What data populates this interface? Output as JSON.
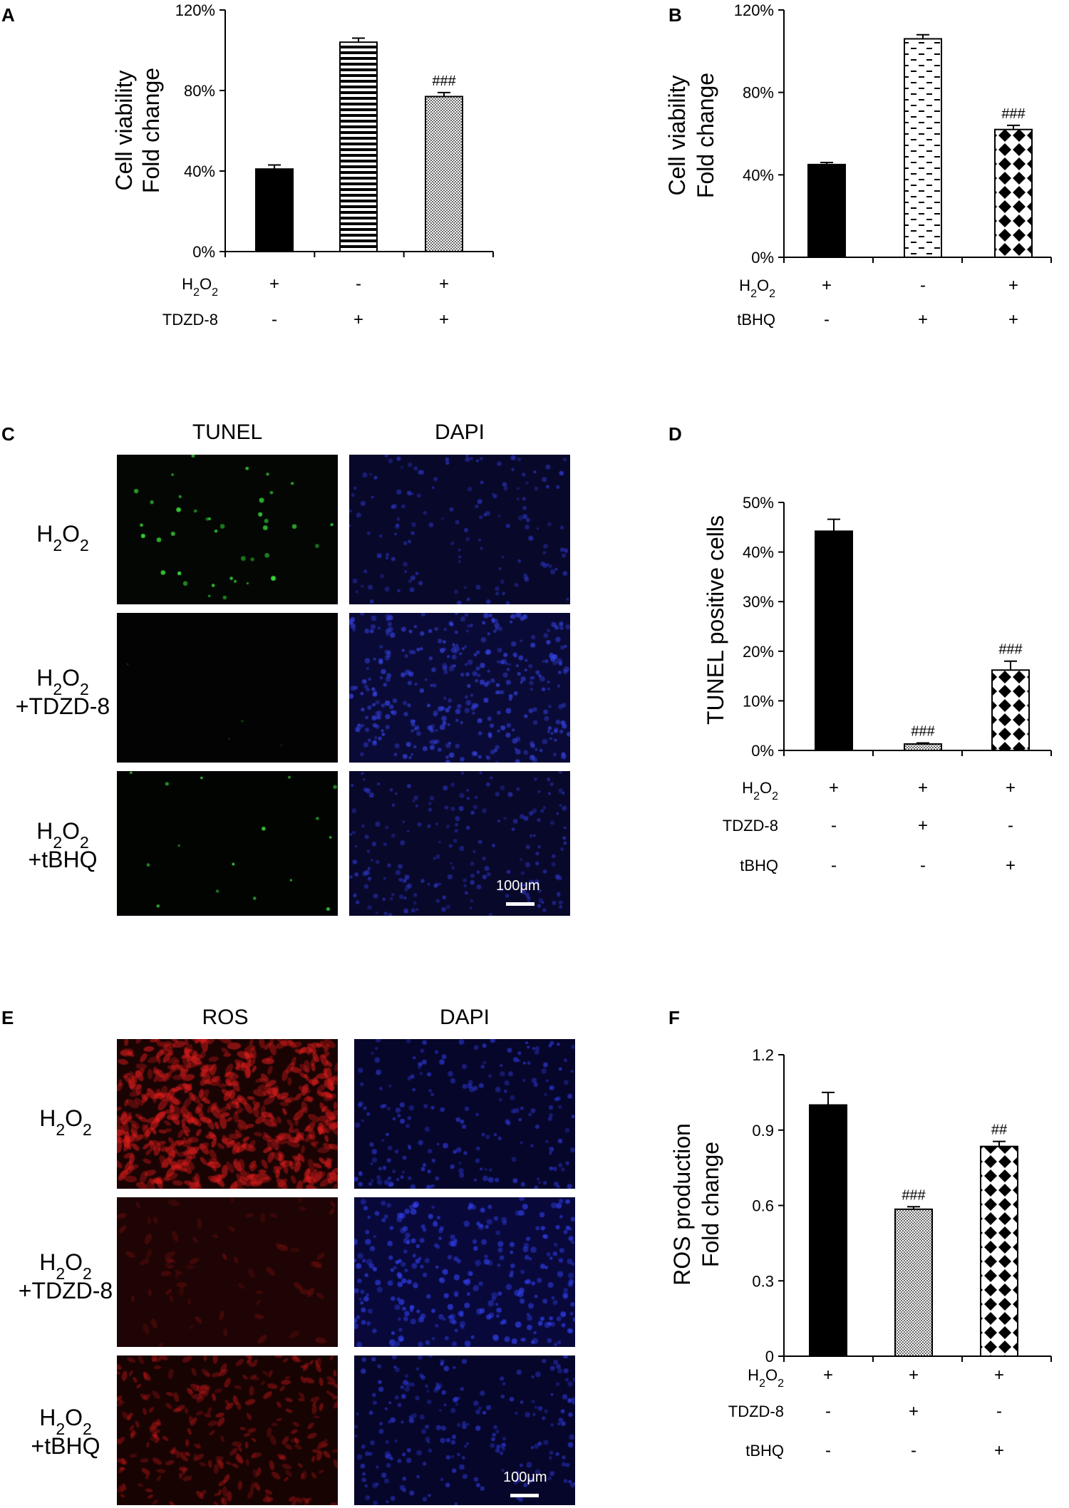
{
  "panels": {
    "A": {
      "letter": "A"
    },
    "B": {
      "letter": "B"
    },
    "C": {
      "letter": "C"
    },
    "D": {
      "letter": "D"
    },
    "E": {
      "letter": "E"
    },
    "F": {
      "letter": "F"
    }
  },
  "chart_data": [
    {
      "id": "A",
      "type": "bar",
      "ylabel_lines": [
        "Cell viability",
        "Fold change"
      ],
      "ylim": [
        0,
        120
      ],
      "yticks": [
        {
          "v": 0,
          "label": "0%"
        },
        {
          "v": 40,
          "label": "40%"
        },
        {
          "v": 80,
          "label": "80%"
        },
        {
          "v": 120,
          "label": "120%"
        }
      ],
      "values": [
        41,
        104,
        77
      ],
      "errors": [
        2,
        2,
        2
      ],
      "patterns": [
        "solid",
        "hstripes",
        "grid"
      ],
      "annotations": [
        "",
        "",
        "###"
      ],
      "condition_rows": [
        {
          "label": "H2O2",
          "signs": [
            "+",
            "-",
            "+"
          ]
        },
        {
          "label": "TDZD-8",
          "signs": [
            "-",
            "+",
            "+"
          ]
        }
      ]
    },
    {
      "id": "B",
      "type": "bar",
      "ylabel_lines": [
        "Cell viability",
        "Fold change"
      ],
      "ylim": [
        0,
        120
      ],
      "yticks": [
        {
          "v": 0,
          "label": "0%"
        },
        {
          "v": 40,
          "label": "40%"
        },
        {
          "v": 80,
          "label": "80%"
        },
        {
          "v": 120,
          "label": "120%"
        }
      ],
      "values": [
        45,
        106,
        62
      ],
      "errors": [
        1,
        2,
        2
      ],
      "patterns": [
        "solid",
        "dashes",
        "diamonds"
      ],
      "annotations": [
        "",
        "",
        "###"
      ],
      "condition_rows": [
        {
          "label": "H2O2",
          "signs": [
            "+",
            "-",
            "+"
          ]
        },
        {
          "label": "tBHQ",
          "signs": [
            "-",
            "+",
            "+"
          ]
        }
      ]
    },
    {
      "id": "D",
      "type": "bar",
      "ylabel_lines": [
        "TUNEL positive cells"
      ],
      "ylim": [
        0,
        50
      ],
      "yticks": [
        {
          "v": 0,
          "label": "0%"
        },
        {
          "v": 10,
          "label": "10%"
        },
        {
          "v": 20,
          "label": "20%"
        },
        {
          "v": 30,
          "label": "30%"
        },
        {
          "v": 40,
          "label": "40%"
        },
        {
          "v": 50,
          "label": "50%"
        }
      ],
      "values": [
        44.2,
        1.3,
        16.2
      ],
      "errors": [
        2.4,
        0.2,
        1.8
      ],
      "patterns": [
        "solid",
        "grid",
        "diamonds"
      ],
      "annotations": [
        "",
        "###",
        "###"
      ],
      "condition_rows": [
        {
          "label": "H2O2",
          "signs": [
            "+",
            "+",
            "+"
          ]
        },
        {
          "label": "TDZD-8",
          "signs": [
            "-",
            "+",
            "-"
          ]
        },
        {
          "label": "tBHQ",
          "signs": [
            "-",
            "-",
            "+"
          ]
        }
      ]
    },
    {
      "id": "F",
      "type": "bar",
      "ylabel_lines": [
        "ROS production",
        "Fold change"
      ],
      "ylim": [
        0,
        1.2
      ],
      "yticks": [
        {
          "v": 0,
          "label": "0"
        },
        {
          "v": 0.3,
          "label": "0.3"
        },
        {
          "v": 0.6,
          "label": "0.6"
        },
        {
          "v": 0.9,
          "label": "0.9"
        },
        {
          "v": 1.2,
          "label": "1.2"
        }
      ],
      "values": [
        1.0,
        0.585,
        0.835
      ],
      "errors": [
        0.05,
        0.01,
        0.02
      ],
      "patterns": [
        "solid",
        "grid",
        "diamonds"
      ],
      "annotations": [
        "",
        "###",
        "##"
      ],
      "condition_rows": [
        {
          "label": "H2O2",
          "signs": [
            "+",
            "+",
            "+"
          ]
        },
        {
          "label": "TDZD-8",
          "signs": [
            "-",
            "+",
            "-"
          ]
        },
        {
          "label": "tBHQ",
          "signs": [
            "-",
            "-",
            "+"
          ]
        }
      ]
    }
  ],
  "micrographs": [
    {
      "id": "C",
      "column_headers": [
        "TUNEL",
        "DAPI"
      ],
      "row_labels": [
        {
          "main": "H2O2",
          "sub": ""
        },
        {
          "main": "H2O2",
          "sub": "+TDZD-8"
        },
        {
          "main": "H2O2",
          "sub": "+tBHQ"
        }
      ],
      "scale_label": "100μm"
    },
    {
      "id": "E",
      "column_headers": [
        "ROS",
        "DAPI"
      ],
      "row_labels": [
        {
          "main": "H2O2",
          "sub": ""
        },
        {
          "main": "H2O2",
          "sub": "+TDZD-8"
        },
        {
          "main": "H2O2",
          "sub": "+tBHQ"
        }
      ],
      "scale_label": "100μm"
    }
  ]
}
